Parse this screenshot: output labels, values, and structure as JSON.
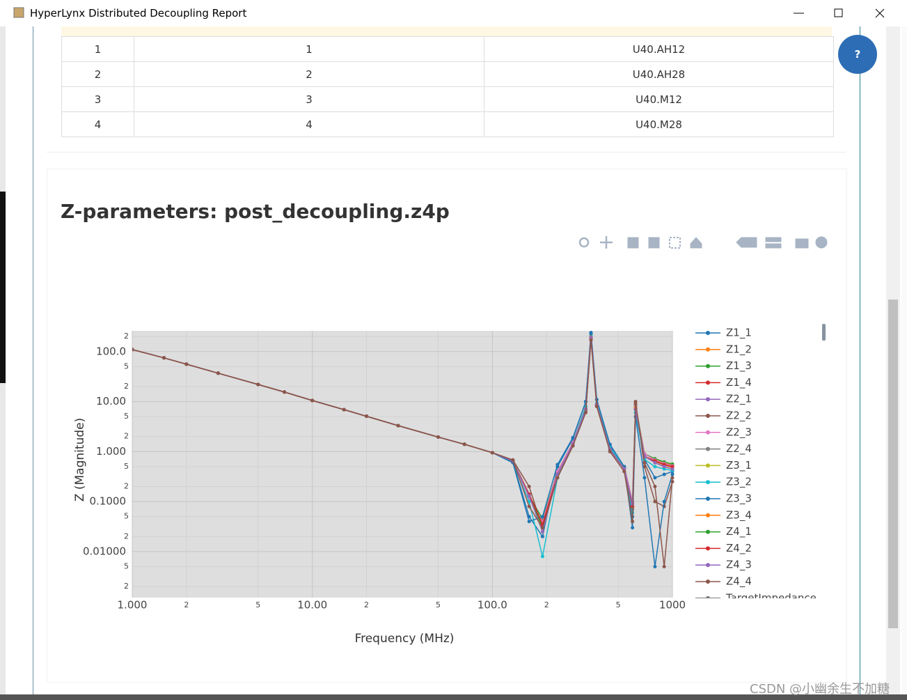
{
  "window": {
    "title": "HyperLynx Distributed Decoupling Report",
    "help": "?"
  },
  "table": {
    "rows": [
      [
        "1",
        "1",
        "U40.AH12"
      ],
      [
        "2",
        "2",
        "U40.AH28"
      ],
      [
        "3",
        "3",
        "U40.M12"
      ],
      [
        "4",
        "4",
        "U40.M28"
      ]
    ]
  },
  "heading": "Z-parameters: post_decoupling.z4p",
  "watermark": "CSDN @小幽余生不加糖",
  "chart_data": {
    "type": "line",
    "xlabel": "Frequency (MHz)",
    "ylabel": "Z (Magnitude)",
    "xlog": true,
    "ylog": true,
    "grid": true,
    "legend": "right",
    "xlim": [
      1,
      1000
    ],
    "ylim": [
      0.0012,
      260
    ],
    "xticks": [
      {
        "value": 1,
        "label": "1.000"
      },
      2,
      5,
      {
        "value": 10,
        "label": "10.00"
      },
      {
        "value": 20,
        "label": "2"
      },
      {
        "value": 50,
        "label": "5"
      },
      {
        "value": 100,
        "label": "100.0"
      },
      {
        "value": 200,
        "label": "2"
      },
      {
        "value": 500,
        "label": "5"
      },
      1000
    ],
    "yticks": [
      {
        "value": 0.002,
        "label": "2"
      },
      {
        "value": 0.005,
        "label": "5"
      },
      {
        "value": 0.01,
        "label": "0.01000"
      },
      {
        "value": 0.02,
        "label": "2"
      },
      {
        "value": 0.05,
        "label": "5"
      },
      {
        "value": 0.1,
        "label": "0.1000"
      },
      {
        "value": 0.2,
        "label": "2"
      },
      {
        "value": 0.5,
        "label": "5"
      },
      {
        "value": 1,
        "label": "1.000"
      },
      2,
      5,
      {
        "value": 10,
        "label": "10.00"
      },
      {
        "value": 20,
        "label": "2"
      },
      {
        "value": 50,
        "label": "5"
      },
      {
        "value": 100,
        "label": "100.0"
      },
      {
        "value": 200,
        "label": "2"
      }
    ],
    "x": [
      1,
      1.5,
      2,
      3,
      5,
      7,
      10,
      15,
      20,
      30,
      50,
      70,
      100,
      130,
      160,
      190,
      230,
      280,
      330,
      353,
      380,
      450,
      540,
      600,
      624,
      700,
      800,
      900,
      1000
    ],
    "series": [
      {
        "name": "Z1_1",
        "color": "#1f77b4",
        "values": [
          110,
          75,
          56,
          37,
          22,
          15.5,
          10.5,
          6.9,
          5.1,
          3.3,
          1.95,
          1.4,
          0.95,
          0.62,
          0.05,
          0.02,
          0.5,
          1.8,
          10,
          240,
          11,
          1.3,
          0.45,
          0.05,
          6,
          0.7,
          0.3,
          0.35,
          0.4
        ]
      },
      {
        "name": "Z1_2",
        "color": "#ff7f0e",
        "values": [
          110,
          75,
          56,
          37,
          22,
          15.5,
          10.5,
          6.9,
          5.1,
          3.3,
          1.95,
          1.4,
          0.95,
          0.66,
          0.12,
          0.04,
          0.4,
          1.5,
          8,
          200,
          9,
          1.2,
          0.5,
          0.1,
          8,
          0.9,
          0.7,
          0.6,
          0.55
        ]
      },
      {
        "name": "Z1_3",
        "color": "#2ca02c",
        "values": [
          110,
          75,
          56,
          37,
          22,
          15.5,
          10.5,
          6.9,
          5.1,
          3.3,
          1.95,
          1.4,
          0.95,
          0.66,
          0.13,
          0.045,
          0.4,
          1.5,
          8,
          205,
          9,
          1.2,
          0.5,
          0.1,
          8.5,
          0.9,
          0.72,
          0.62,
          0.56
        ]
      },
      {
        "name": "Z1_4",
        "color": "#d62728",
        "values": [
          110,
          75,
          56,
          37,
          22,
          15.5,
          10.5,
          6.9,
          5.1,
          3.3,
          1.95,
          1.4,
          0.95,
          0.65,
          0.14,
          0.03,
          0.35,
          1.4,
          7,
          190,
          8.5,
          1.1,
          0.45,
          0.08,
          7,
          0.8,
          0.65,
          0.55,
          0.5
        ]
      },
      {
        "name": "Z2_1",
        "color": "#9467bd",
        "values": [
          110,
          75,
          56,
          37,
          22,
          15.5,
          10.5,
          6.9,
          5.1,
          3.3,
          1.95,
          1.4,
          0.95,
          0.65,
          0.13,
          0.025,
          0.35,
          1.4,
          7,
          190,
          8.5,
          1.1,
          0.45,
          0.09,
          7,
          0.8,
          0.6,
          0.5,
          0.45
        ]
      },
      {
        "name": "Z2_2",
        "color": "#8c564b",
        "values": [
          110,
          75,
          56,
          37,
          22,
          15.5,
          10.5,
          6.9,
          5.1,
          3.3,
          1.95,
          1.4,
          0.95,
          0.68,
          0.2,
          0.03,
          0.3,
          1.3,
          6.5,
          180,
          8,
          1.0,
          0.4,
          0.07,
          9,
          0.5,
          0.1,
          0.08,
          0.25
        ]
      },
      {
        "name": "Z2_3",
        "color": "#e377c2",
        "values": [
          110,
          75,
          56,
          37,
          22,
          15.5,
          10.5,
          6.9,
          5.1,
          3.3,
          1.95,
          1.4,
          0.95,
          0.66,
          0.12,
          0.04,
          0.4,
          1.5,
          8,
          200,
          9,
          1.2,
          0.5,
          0.1,
          8,
          0.9,
          0.68,
          0.58,
          0.52
        ]
      },
      {
        "name": "Z2_4",
        "color": "#7f7f7f",
        "values": [
          110,
          75,
          56,
          37,
          22,
          15.5,
          10.5,
          6.9,
          5.1,
          3.3,
          1.95,
          1.4,
          0.95,
          0.65,
          0.14,
          0.03,
          0.35,
          1.4,
          7,
          195,
          8.5,
          1.1,
          0.45,
          0.08,
          7.5,
          0.8,
          0.64,
          0.54,
          0.49
        ]
      },
      {
        "name": "Z3_1",
        "color": "#bcbd22",
        "values": [
          110,
          75,
          56,
          37,
          22,
          15.5,
          10.5,
          6.9,
          5.1,
          3.3,
          1.95,
          1.4,
          0.95,
          0.66,
          0.13,
          0.025,
          0.35,
          1.4,
          7,
          190,
          8.5,
          1.1,
          0.45,
          0.09,
          7,
          0.8,
          0.6,
          0.5,
          0.45
        ]
      },
      {
        "name": "Z3_2",
        "color": "#17becf",
        "values": [
          110,
          75,
          56,
          37,
          22,
          15.5,
          10.5,
          6.9,
          5.1,
          3.3,
          1.95,
          1.4,
          0.95,
          0.6,
          0.1,
          0.008,
          0.3,
          1.4,
          8,
          210,
          9,
          1.2,
          0.5,
          0.06,
          6,
          0.7,
          0.5,
          0.45,
          0.42
        ]
      },
      {
        "name": "Z3_3",
        "color": "#1f77b4",
        "values": [
          110,
          75,
          56,
          37,
          22,
          15.5,
          10.5,
          6.9,
          5.1,
          3.3,
          1.95,
          1.4,
          0.95,
          0.6,
          0.04,
          0.05,
          0.55,
          1.9,
          10,
          230,
          11,
          1.4,
          0.5,
          0.03,
          5,
          0.3,
          0.005,
          0.1,
          0.35
        ]
      },
      {
        "name": "Z3_4",
        "color": "#ff7f0e",
        "values": [
          110,
          75,
          56,
          37,
          22,
          15.5,
          10.5,
          6.9,
          5.1,
          3.3,
          1.95,
          1.4,
          0.95,
          0.65,
          0.14,
          0.03,
          0.35,
          1.4,
          7,
          195,
          8.5,
          1.1,
          0.45,
          0.08,
          7.5,
          0.8,
          0.64,
          0.54,
          0.49
        ]
      },
      {
        "name": "Z4_1",
        "color": "#2ca02c",
        "values": [
          110,
          75,
          56,
          37,
          22,
          15.5,
          10.5,
          6.9,
          5.1,
          3.3,
          1.95,
          1.4,
          0.95,
          0.65,
          0.14,
          0.03,
          0.35,
          1.4,
          7,
          190,
          8.5,
          1.1,
          0.45,
          0.08,
          7,
          0.8,
          0.65,
          0.55,
          0.5
        ]
      },
      {
        "name": "Z4_2",
        "color": "#d62728",
        "values": [
          110,
          75,
          56,
          37,
          22,
          15.5,
          10.5,
          6.9,
          5.1,
          3.3,
          1.95,
          1.4,
          0.95,
          0.65,
          0.14,
          0.035,
          0.35,
          1.4,
          7,
          190,
          8.5,
          1.1,
          0.45,
          0.08,
          7,
          0.8,
          0.65,
          0.55,
          0.5
        ]
      },
      {
        "name": "Z4_3",
        "color": "#9467bd",
        "values": [
          110,
          75,
          56,
          37,
          22,
          15.5,
          10.5,
          6.9,
          5.1,
          3.3,
          1.95,
          1.4,
          0.95,
          0.65,
          0.13,
          0.025,
          0.35,
          1.4,
          7,
          190,
          8.5,
          1.1,
          0.45,
          0.09,
          7,
          0.8,
          0.6,
          0.5,
          0.45
        ]
      },
      {
        "name": "Z4_4",
        "color": "#8c564b",
        "values": [
          110,
          75,
          56,
          37,
          22,
          15.5,
          10.5,
          6.9,
          5.1,
          3.3,
          1.95,
          1.4,
          0.95,
          0.68,
          0.08,
          0.03,
          0.3,
          1.3,
          6,
          170,
          8,
          1.0,
          0.4,
          0.04,
          10,
          0.6,
          0.2,
          0.005,
          0.3
        ]
      },
      {
        "name": "TargetImpedance",
        "color": "#7f7f7f",
        "values": [
          null,
          null,
          null,
          null,
          null,
          null,
          null,
          null,
          null,
          null,
          null,
          null,
          null,
          null,
          null,
          null,
          null,
          null,
          null,
          null,
          null,
          null,
          null,
          null,
          null,
          null,
          null,
          null,
          null
        ]
      }
    ]
  }
}
